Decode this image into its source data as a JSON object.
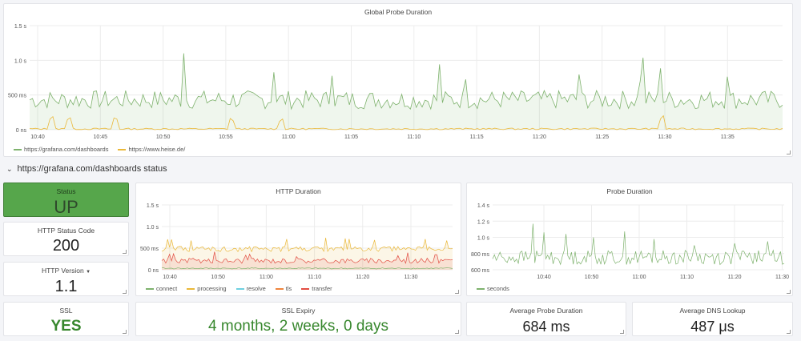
{
  "colors": {
    "green": "#7eb26d",
    "orange": "#eab839",
    "status_bg": "#56a64b",
    "ok_text": "#37872d",
    "red": "#e24d42",
    "cyan": "#6ed0e0",
    "brick": "#bf1b00"
  },
  "global": {
    "title": "Global Probe Duration",
    "y_ticks": [
      "1.5 s",
      "1.0 s",
      "500 ms",
      "0 ns"
    ],
    "x_ticks": [
      "10:40",
      "10:45",
      "10:50",
      "10:55",
      "11:00",
      "11:05",
      "11:10",
      "11:15",
      "11:20",
      "11:25",
      "11:30",
      "11:35"
    ],
    "legend": [
      {
        "label": "https://grafana.com/dashboards",
        "color": "#7eb26d"
      },
      {
        "label": "https://www.heise.de/",
        "color": "#eab839"
      }
    ]
  },
  "row": {
    "title": "https://grafana.com/dashboards status"
  },
  "status": {
    "title": "Status",
    "value": "UP"
  },
  "http_status": {
    "title": "HTTP Status Code",
    "value": "200"
  },
  "http_version": {
    "title": "HTTP Version",
    "value": "1.1"
  },
  "http_duration": {
    "title": "HTTP Duration",
    "y_ticks": [
      "1.5 s",
      "1.0 s",
      "500 ms",
      "0 ns"
    ],
    "x_ticks": [
      "10:40",
      "10:50",
      "11:00",
      "11:10",
      "11:20",
      "11:30"
    ],
    "legend": [
      {
        "label": "connect",
        "color": "#7eb26d"
      },
      {
        "label": "processing",
        "color": "#eab839"
      },
      {
        "label": "resolve",
        "color": "#6ed0e0"
      },
      {
        "label": "tls",
        "color": "#ef843c"
      },
      {
        "label": "transfer",
        "color": "#e24d42"
      }
    ]
  },
  "probe_duration": {
    "title": "Probe Duration",
    "y_ticks": [
      "1.4 s",
      "1.2 s",
      "1.0 s",
      "800 ms",
      "600 ms"
    ],
    "x_ticks": [
      "10:40",
      "10:50",
      "11:00",
      "11:10",
      "11:20",
      "11:30"
    ],
    "legend": [
      {
        "label": "seconds",
        "color": "#7eb26d"
      }
    ]
  },
  "ssl": {
    "title": "SSL",
    "value": "YES"
  },
  "ssl_expiry": {
    "title": "SSL Expiry",
    "value": "4 months, 2 weeks, 0 days"
  },
  "avg_probe": {
    "title": "Average Probe Duration",
    "value": "684 ms"
  },
  "avg_dns": {
    "title": "Average DNS Lookup",
    "value": "487 μs"
  }
}
